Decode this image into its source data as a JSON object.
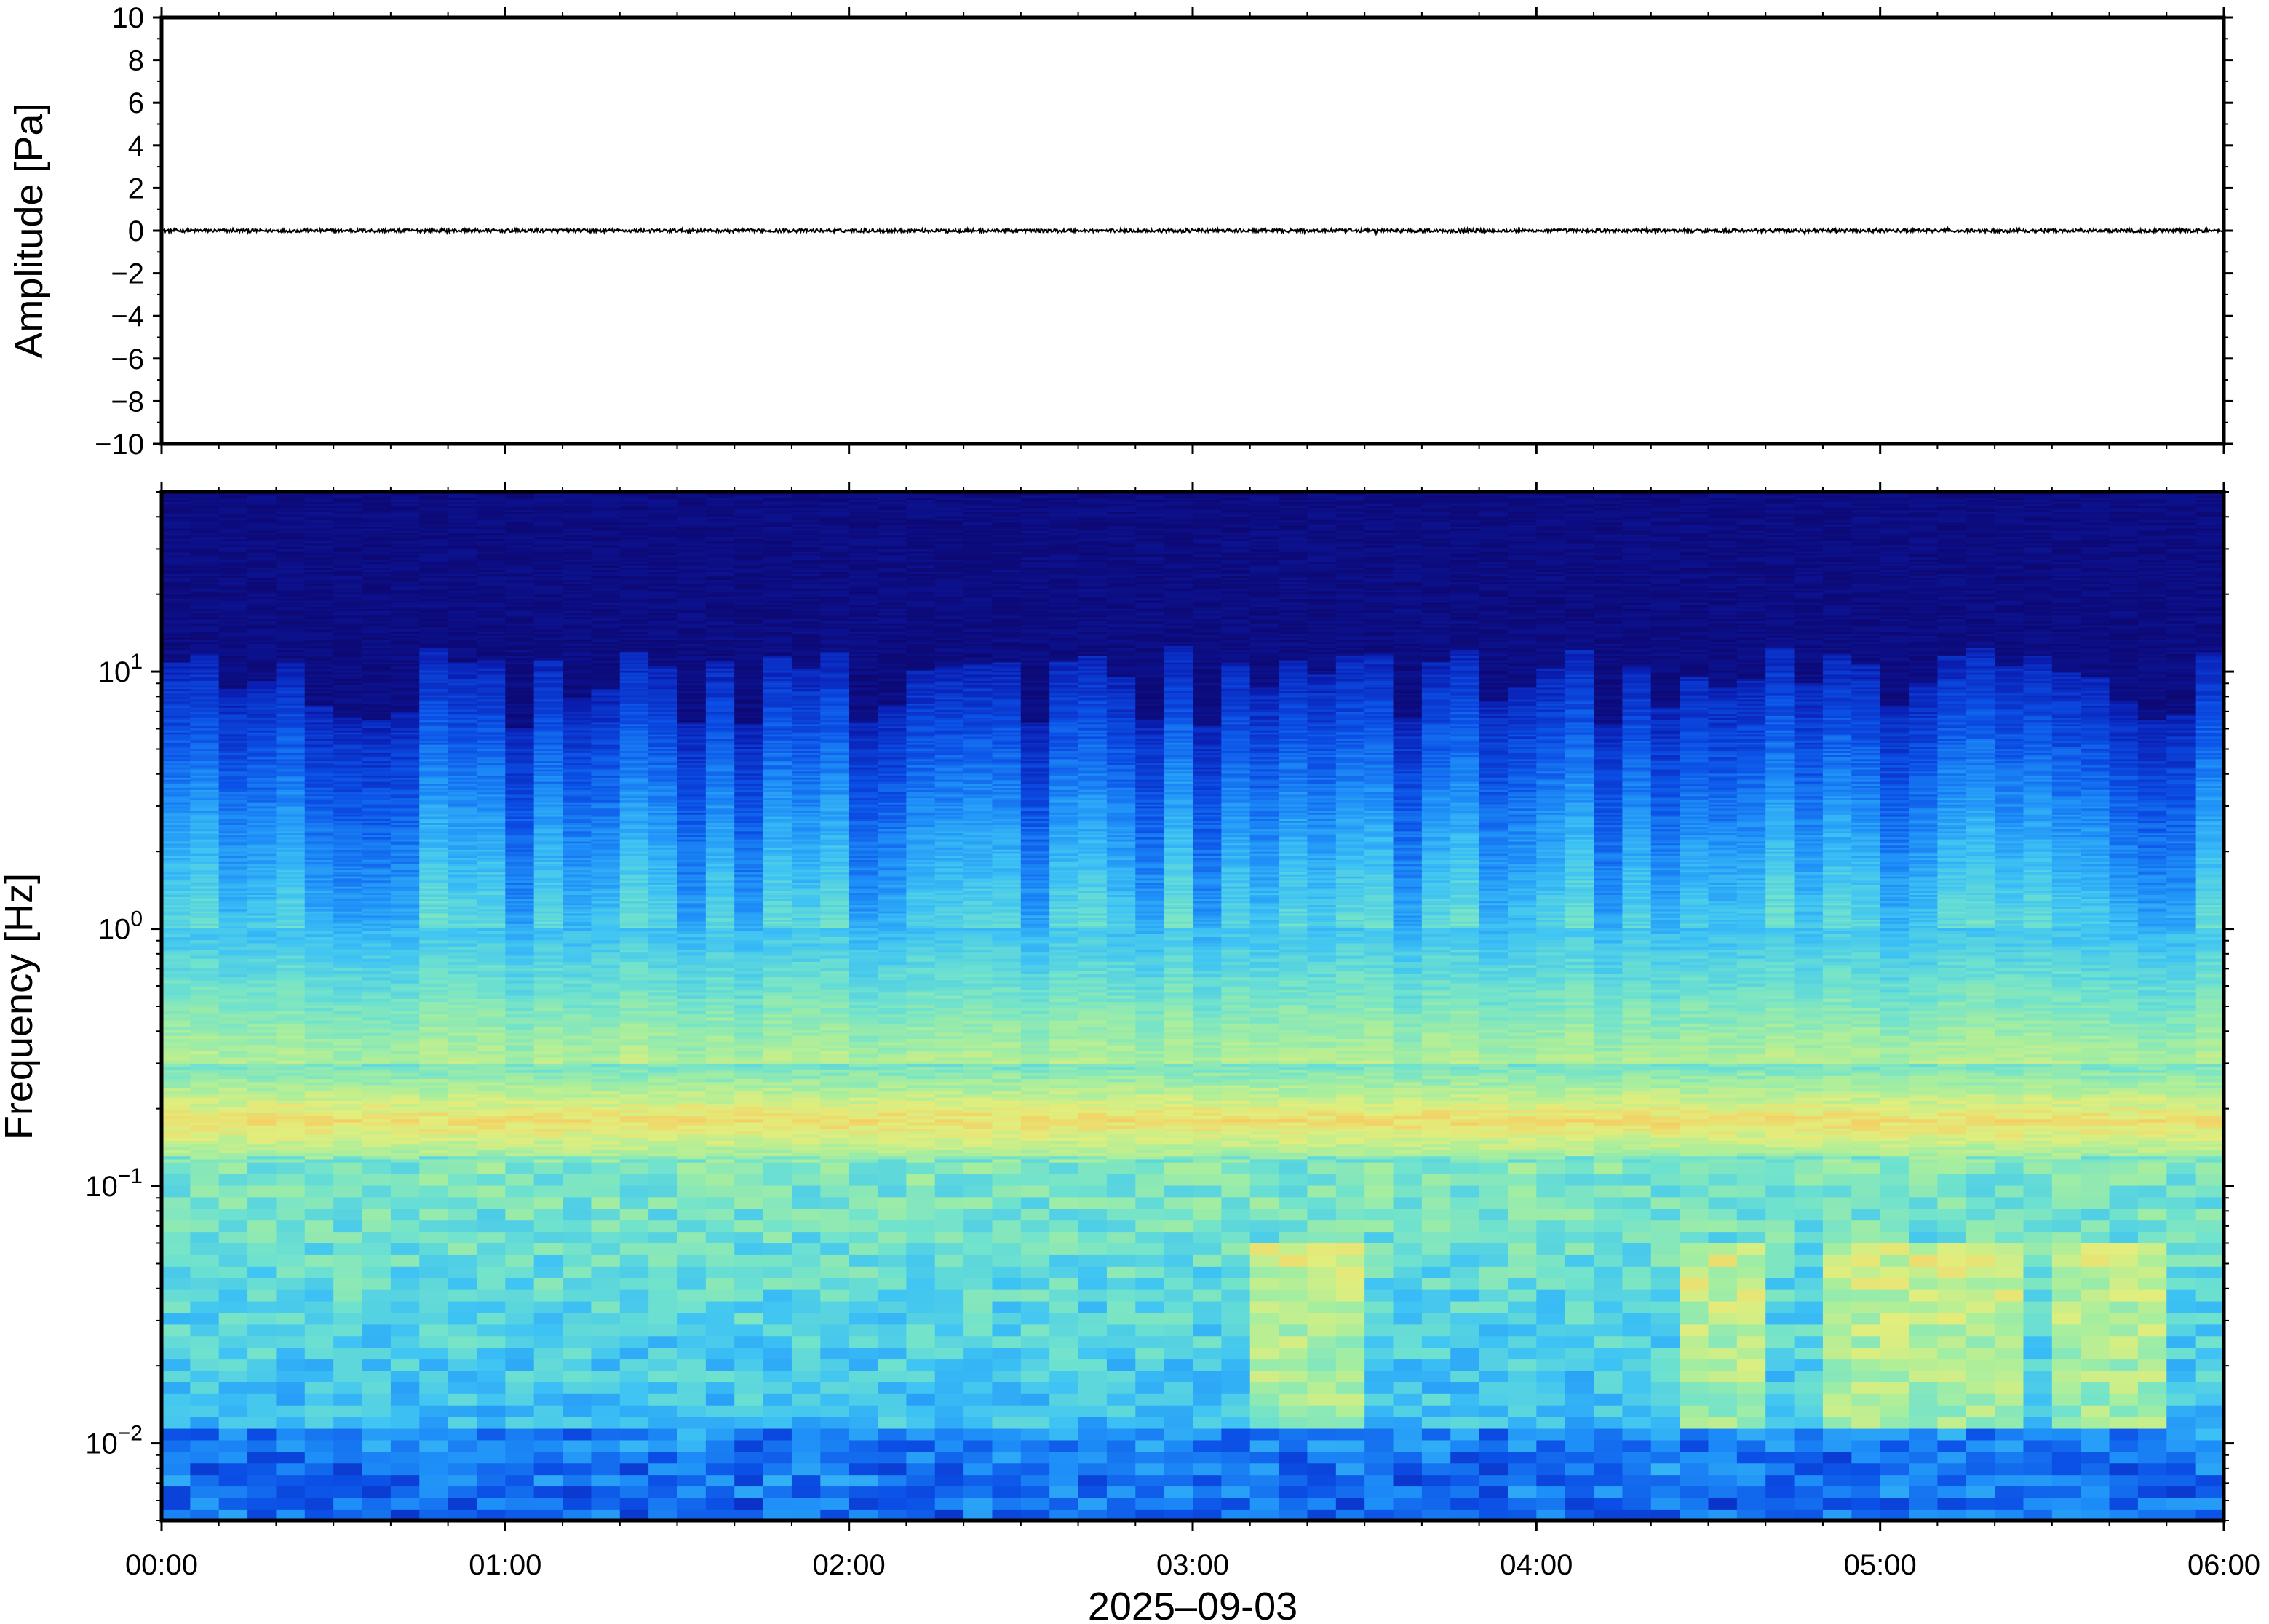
{
  "chart_data": [
    {
      "type": "line",
      "panel": "waveform",
      "ylabel": "Amplitude [Pa]",
      "ylim": [
        -10,
        10
      ],
      "yticks": [
        "10",
        "8",
        "6",
        "4",
        "2",
        "0",
        "−2",
        "−4",
        "−6",
        "−8",
        "−10"
      ],
      "ytick_values": [
        10,
        8,
        6,
        4,
        2,
        0,
        -2,
        -4,
        -6,
        -8,
        -10
      ],
      "x_range_hours": [
        0,
        6
      ],
      "signal": "near-zero noise trace, peak amplitude about 0.1 Pa",
      "peak_amplitude": 0.1
    },
    {
      "type": "heatmap",
      "panel": "spectrogram",
      "ylabel": "Frequency [Hz]",
      "xlabel": "2025‒09‑03",
      "yscale": "log",
      "ylim": [
        0.005,
        50
      ],
      "yticks": [
        {
          "base": "10",
          "exp": "1",
          "value": 10
        },
        {
          "base": "10",
          "exp": "0",
          "value": 1
        },
        {
          "base": "10",
          "exp": "−1",
          "value": 0.1
        },
        {
          "base": "10",
          "exp": "−2",
          "value": 0.01
        }
      ],
      "xticks": [
        "00:00",
        "01:00",
        "02:00",
        "03:00",
        "04:00",
        "05:00",
        "06:00"
      ],
      "xtick_values_hours": [
        0,
        1,
        2,
        3,
        4,
        5,
        6
      ],
      "colormap": [
        "#0d0873",
        "#0a1fb4",
        "#0b4fe6",
        "#1e8ff8",
        "#3ec3f4",
        "#6fe2ce",
        "#a7ee9e",
        "#e2ee7c",
        "#f8c75e",
        "#f79a46"
      ],
      "columns": 72,
      "notable": {
        "microbarom_band_hz": [
          0.13,
          0.3
        ],
        "microbarom_peak_hz": 0.18,
        "high_freq_cutoff_hz": [
          6,
          13
        ],
        "elevated_low_freq_windows_hours": [
          [
            3.2,
            3.5
          ],
          [
            4.4,
            4.7
          ],
          [
            4.8,
            5.4
          ],
          [
            5.5,
            5.8
          ]
        ]
      }
    }
  ]
}
